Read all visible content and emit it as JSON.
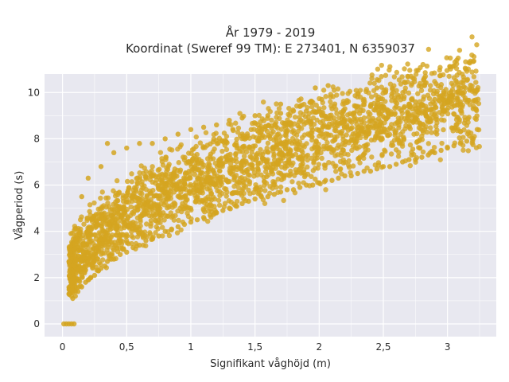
{
  "chart_data": {
    "type": "scatter",
    "title": "År 1979 - 2019",
    "subtitle": "Koordinat (Sweref 99 TM): E 273401, N 6359037",
    "xlabel": "Signifikant våghöjd (m)",
    "ylabel": "Vågperiod (s)",
    "xlim": [
      -0.14,
      3.38
    ],
    "ylim": [
      -0.55,
      10.8
    ],
    "xticks": [
      0,
      0.5,
      1,
      1.5,
      2,
      2.5,
      3
    ],
    "xtick_labels": [
      "0",
      "0,5",
      "1",
      "1,5",
      "2",
      "2,5",
      "3"
    ],
    "yticks": [
      0,
      2,
      4,
      6,
      8,
      10
    ],
    "ytick_labels": [
      "0",
      "2",
      "4",
      "6",
      "8",
      "10"
    ],
    "grid": true,
    "legend": "none",
    "colors": {
      "marker": "#d4a520",
      "plot_bg": "#e8e8f0",
      "grid": "#ffffff"
    },
    "series": [
      {
        "points_note_free": true,
        "x": [
          0.01,
          0.03,
          0.05,
          0.07,
          0.09,
          0.05,
          0.08,
          0.1,
          0.12,
          0.15,
          0.18,
          0.2,
          0.22,
          0.25,
          0.28,
          0.3,
          0.33,
          0.35,
          0.4,
          0.45,
          0.5,
          0.55,
          0.6,
          0.65,
          0.7,
          0.75,
          0.8,
          0.85,
          0.9,
          0.95,
          1.0,
          1.05,
          1.1,
          1.15,
          1.2,
          1.25,
          1.3,
          1.35,
          1.4,
          1.45,
          1.5,
          1.55,
          1.6,
          1.65,
          1.7,
          1.75,
          1.8,
          1.85,
          1.9,
          1.95,
          2.0,
          2.05,
          2.1,
          2.15,
          2.2,
          2.25,
          2.3,
          2.35,
          2.4,
          2.45,
          2.5,
          2.55,
          2.6,
          2.65,
          2.7,
          2.75,
          2.8,
          2.85,
          2.9,
          2.95,
          3.0,
          3.05,
          3.1,
          3.15,
          3.2,
          0.15,
          0.2,
          0.3,
          0.4,
          0.5,
          0.6,
          0.7,
          0.8,
          0.9,
          1.0,
          1.1,
          1.2,
          1.3,
          1.4,
          1.5,
          1.6,
          1.7,
          1.8,
          1.9,
          2.0,
          2.1,
          2.2,
          2.3,
          2.4,
          2.5,
          2.6,
          2.7,
          2.8,
          2.9,
          3.0,
          3.1,
          3.2,
          1.97,
          2.07,
          2.45,
          1.7,
          2.02,
          1.85,
          2.75,
          2.9,
          3.0,
          3.1,
          3.22,
          0.35,
          0.22
        ],
        "y": [
          0.0,
          0.0,
          0.0,
          0.0,
          0.0,
          1.3,
          1.1,
          1.2,
          1.4,
          1.6,
          1.8,
          1.9,
          2.0,
          2.1,
          2.3,
          2.4,
          2.5,
          2.7,
          2.8,
          3.0,
          3.1,
          3.3,
          3.4,
          3.6,
          3.7,
          3.8,
          4.0,
          4.1,
          4.2,
          4.3,
          4.4,
          4.5,
          4.6,
          4.7,
          4.8,
          4.9,
          5.0,
          5.1,
          5.2,
          5.3,
          5.4,
          5.5,
          5.5,
          5.6,
          5.7,
          5.8,
          5.8,
          5.9,
          6.0,
          6.0,
          6.1,
          6.2,
          6.2,
          6.3,
          6.4,
          6.4,
          6.5,
          6.6,
          6.6,
          6.7,
          6.8,
          6.8,
          6.9,
          7.0,
          7.1,
          7.1,
          7.2,
          7.3,
          7.4,
          7.5,
          7.6,
          7.7,
          7.8,
          7.9,
          8.0,
          5.5,
          6.3,
          6.8,
          7.4,
          7.6,
          7.8,
          7.8,
          8.0,
          8.2,
          8.4,
          8.5,
          8.6,
          8.8,
          8.9,
          9.0,
          9.0,
          9.1,
          9.2,
          9.2,
          9.3,
          9.3,
          9.3,
          9.4,
          9.4,
          9.4,
          9.4,
          9.5,
          9.5,
          9.5,
          9.6,
          9.6,
          9.3,
          10.2,
          10.3,
          10.2,
          9.5,
          9.7,
          9.4,
          9.6,
          9.7,
          9.6,
          9.5,
          9.3,
          7.8,
          2.0
        ]
      }
    ]
  }
}
